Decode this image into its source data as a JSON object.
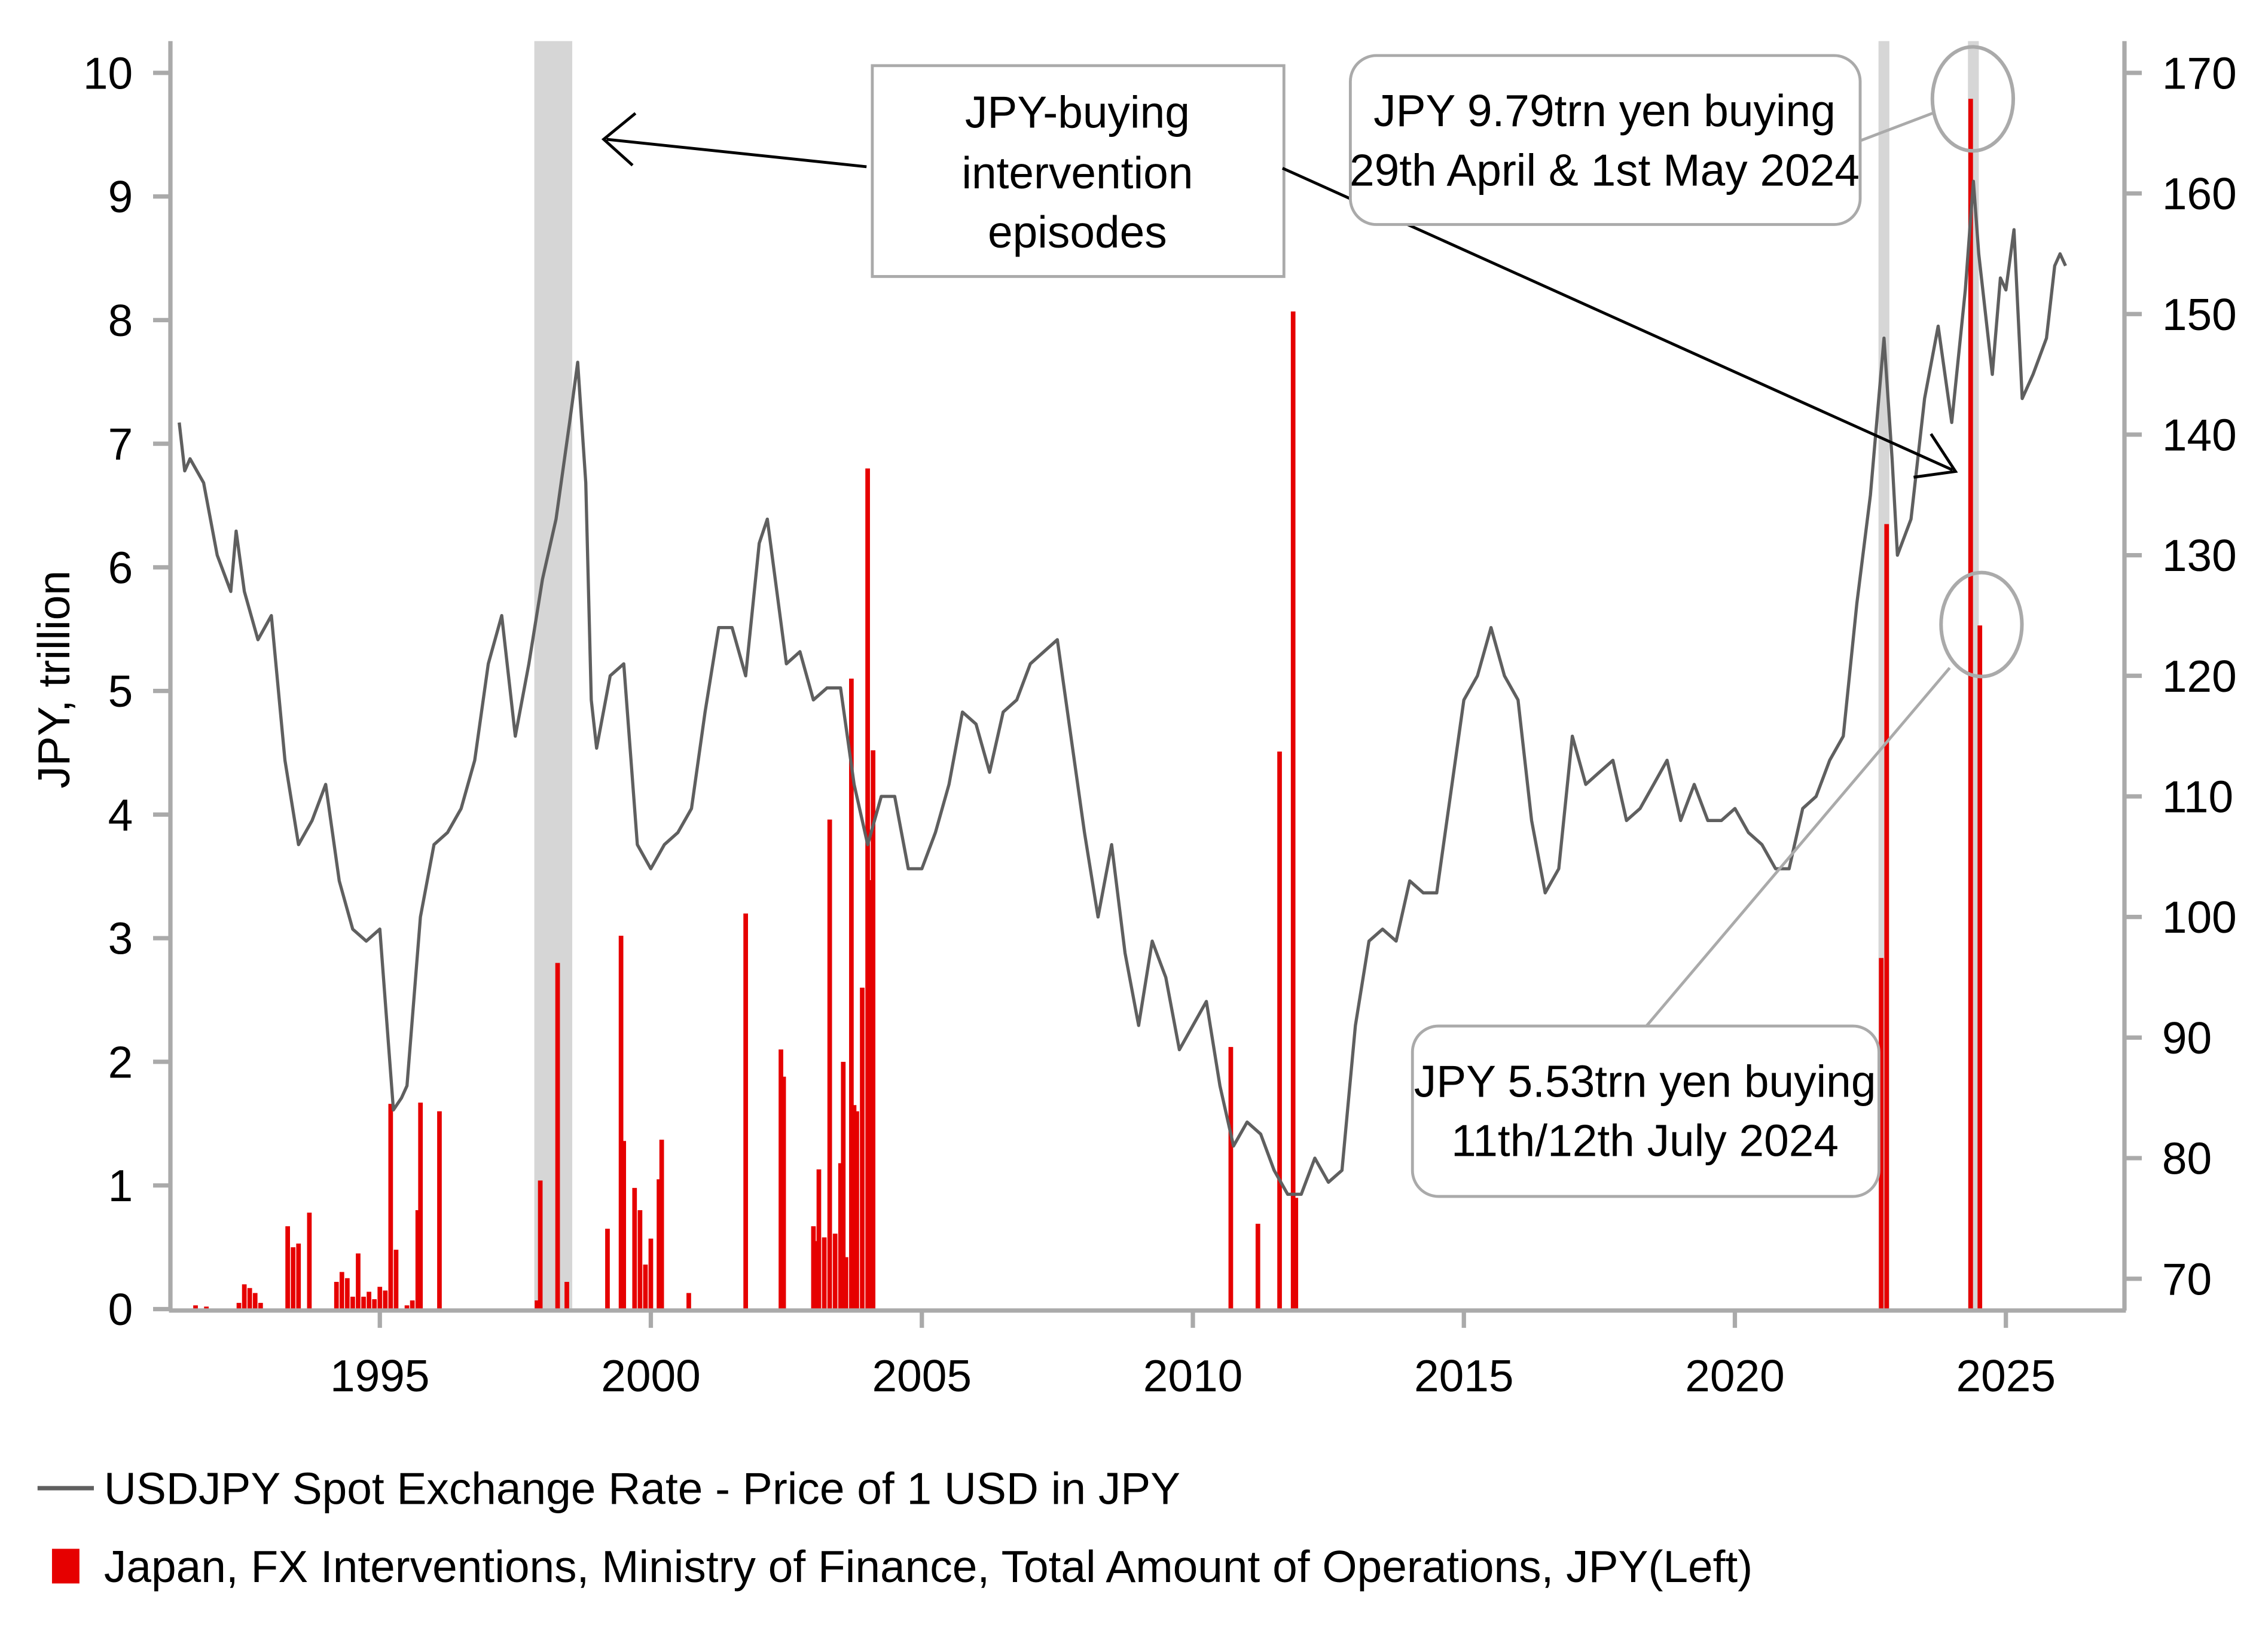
{
  "chart_data": {
    "type": "bar+line",
    "title": "",
    "ylabel_left": "JPY, trillion",
    "ylabel_right": "",
    "xlabel": "",
    "ylim_left": [
      0,
      10
    ],
    "ylim_right": [
      70,
      170
    ],
    "xlim": [
      1991.3,
      2026.5
    ],
    "x_ticks": [
      "1995",
      "2000",
      "2005",
      "2010",
      "2015",
      "2020",
      "2025"
    ],
    "y_ticks_left": [
      "0",
      "1",
      "2",
      "3",
      "4",
      "5",
      "6",
      "7",
      "8",
      "9",
      "10"
    ],
    "y_ticks_right": [
      "70",
      "80",
      "90",
      "100",
      "110",
      "120",
      "130",
      "140",
      "150",
      "160",
      "170"
    ],
    "grid": false,
    "legend_placement": "bottom",
    "colors": {
      "line": "#5f5f5f",
      "bars": "#e60000",
      "shade": "#d6d6d6",
      "axis": "#aaaaaa"
    },
    "shaded_episodes": [
      [
        1997.85,
        1998.55
      ],
      [
        2022.65,
        2022.85
      ],
      [
        2024.3,
        2024.5
      ]
    ],
    "series": [
      {
        "name": "USDJPY Spot Exchange Rate - Price of 1 USD in JPY",
        "type": "line",
        "axis": "right",
        "x": [
          1991.3,
          1991.4,
          1991.5,
          1991.75,
          1992.0,
          1992.25,
          1992.35,
          1992.5,
          1992.75,
          1993.0,
          1993.25,
          1993.5,
          1993.75,
          1994.0,
          1994.25,
          1994.5,
          1994.75,
          1995.0,
          1995.25,
          1995.4,
          1995.5,
          1995.75,
          1996.0,
          1996.25,
          1996.5,
          1996.75,
          1997.0,
          1997.25,
          1997.5,
          1997.75,
          1998.0,
          1998.25,
          1998.5,
          1998.65,
          1998.8,
          1998.9,
          1999.0,
          1999.25,
          1999.5,
          1999.75,
          2000.0,
          2000.25,
          2000.5,
          2000.75,
          2001.0,
          2001.25,
          2001.5,
          2001.75,
          2002.0,
          2002.15,
          2002.5,
          2002.75,
          2003.0,
          2003.25,
          2003.5,
          2003.75,
          2004.0,
          2004.25,
          2004.5,
          2004.75,
          2005.0,
          2005.25,
          2005.5,
          2005.75,
          2006.0,
          2006.25,
          2006.5,
          2006.75,
          2007.0,
          2007.5,
          2007.75,
          2008.0,
          2008.25,
          2008.5,
          2008.75,
          2009.0,
          2009.25,
          2009.5,
          2009.75,
          2010.0,
          2010.25,
          2010.5,
          2010.75,
          2011.0,
          2011.25,
          2011.5,
          2011.75,
          2012.0,
          2012.25,
          2012.5,
          2012.75,
          2013.0,
          2013.25,
          2013.5,
          2013.75,
          2014.0,
          2014.25,
          2014.5,
          2014.75,
          2015.0,
          2015.25,
          2015.5,
          2015.75,
          2016.0,
          2016.25,
          2016.5,
          2016.75,
          2017.0,
          2017.25,
          2017.5,
          2017.75,
          2018.0,
          2018.25,
          2018.5,
          2018.75,
          2019.0,
          2019.25,
          2019.5,
          2019.75,
          2020.0,
          2020.25,
          2020.5,
          2020.75,
          2021.0,
          2021.25,
          2021.5,
          2021.75,
          2022.0,
          2022.25,
          2022.5,
          2022.75,
          2022.9,
          2023.0,
          2023.25,
          2023.5,
          2023.75,
          2024.0,
          2024.25,
          2024.4,
          2024.5,
          2024.75,
          2024.9,
          2025.0,
          2025.15,
          2025.3,
          2025.5,
          2025.75,
          2025.9,
          2026.0,
          2026.1
        ],
        "values": [
          141,
          137,
          138,
          136,
          130,
          127,
          132,
          127,
          123,
          125,
          113,
          106,
          108,
          111,
          103,
          99,
          98,
          99,
          84,
          85,
          86,
          100,
          106,
          107,
          109,
          113,
          121,
          125,
          115,
          121,
          128,
          133,
          141,
          146,
          136,
          118,
          114,
          120,
          121,
          106,
          104,
          106,
          107,
          109,
          117,
          124,
          124,
          120,
          131,
          133,
          121,
          122,
          118,
          119,
          119,
          111,
          106,
          110,
          110,
          104,
          104,
          107,
          111,
          117,
          116,
          112,
          117,
          118,
          121,
          123,
          115,
          107,
          100,
          106,
          97,
          91,
          98,
          95,
          89,
          91,
          93,
          86,
          81,
          83,
          82,
          79,
          77,
          77,
          80,
          78,
          79,
          91,
          98,
          99,
          98,
          103,
          102,
          102,
          110,
          118,
          120,
          124,
          120,
          118,
          108,
          102,
          104,
          115,
          111,
          112,
          113,
          108,
          109,
          111,
          113,
          108,
          111,
          108,
          108,
          109,
          107,
          106,
          104,
          104,
          109,
          110,
          113,
          115,
          126,
          135,
          148,
          138,
          130,
          133,
          143,
          149,
          141,
          152,
          161,
          155,
          145,
          153,
          152,
          157,
          143,
          145,
          148,
          154,
          155,
          154
        ]
      },
      {
        "name": "Japan, FX Interventions, Ministry of Finance, Total Amount of Operations, JPY(Left)",
        "type": "bar",
        "axis": "left",
        "x": [
          1991.6,
          1991.8,
          1992.4,
          1992.5,
          1992.6,
          1992.7,
          1992.8,
          1993.3,
          1993.4,
          1993.5,
          1993.7,
          1994.2,
          1994.3,
          1994.4,
          1994.5,
          1994.6,
          1994.7,
          1994.8,
          1994.9,
          1995.0,
          1995.1,
          1995.2,
          1995.3,
          1995.5,
          1995.6,
          1995.7,
          1995.75,
          1996.1,
          1997.9,
          1997.96,
          1998.28,
          1998.45,
          1999.2,
          1999.45,
          1999.5,
          1999.7,
          1999.8,
          1999.9,
          2000.0,
          2000.15,
          2000.2,
          2000.7,
          2001.75,
          2002.4,
          2002.45,
          2003.0,
          2003.05,
          2003.1,
          2003.2,
          2003.3,
          2003.4,
          2003.5,
          2003.55,
          2003.6,
          2003.7,
          2003.75,
          2003.8,
          2003.9,
          2004.0,
          2004.05,
          2004.1,
          2010.7,
          2011.2,
          2011.6,
          2011.85,
          2011.9,
          2022.7,
          2022.8,
          2024.35,
          2024.52
        ],
        "values": [
          0.03,
          0.02,
          0.05,
          0.2,
          0.17,
          0.13,
          0.05,
          0.67,
          0.5,
          0.53,
          0.78,
          0.22,
          0.3,
          0.25,
          0.1,
          0.45,
          0.1,
          0.14,
          0.08,
          0.18,
          0.15,
          1.66,
          0.48,
          0.03,
          0.07,
          0.8,
          1.67,
          1.6,
          0.07,
          1.04,
          2.8,
          0.22,
          0.65,
          3.02,
          1.36,
          0.98,
          0.8,
          0.36,
          0.57,
          1.05,
          1.37,
          0.13,
          3.2,
          2.1,
          1.88,
          0.67,
          0.55,
          1.13,
          0.58,
          3.96,
          0.61,
          1.18,
          2.0,
          0.42,
          5.1,
          1.65,
          1.6,
          2.6,
          6.8,
          3.47,
          4.52,
          2.12,
          0.69,
          4.51,
          8.07,
          0.9,
          2.84,
          6.35,
          9.79,
          5.53
        ]
      }
    ],
    "annotations": {
      "episodes_box": [
        "JPY-buying",
        "intervention",
        "episodes"
      ],
      "peak_box": [
        "JPY 9.79trn yen buying",
        "29th April & 1st May 2024"
      ],
      "july_box": [
        "JPY 5.53trn yen buying",
        "11th/12th July 2024"
      ]
    },
    "legend": [
      "USDJPY Spot Exchange Rate - Price of 1 USD in JPY",
      "Japan, FX Interventions, Ministry of Finance, Total Amount of Operations, JPY(Left)"
    ]
  }
}
